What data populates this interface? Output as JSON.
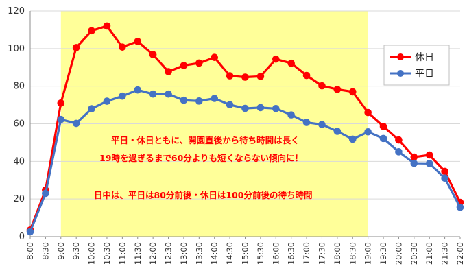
{
  "chart_data": {
    "type": "line",
    "categories": [
      "8:00",
      "8:30",
      "9:00",
      "9:30",
      "10:00",
      "10:30",
      "11:00",
      "11:30",
      "12:00",
      "12:30",
      "13:00",
      "13:30",
      "14:00",
      "14:30",
      "15:00",
      "15:30",
      "16:00",
      "16:30",
      "17:00",
      "17:30",
      "18:00",
      "18:30",
      "19:00",
      "19:30",
      "20:00",
      "20:30",
      "21:00",
      "21:30",
      "22:00"
    ],
    "series": [
      {
        "name": "休日",
        "color": "#ff0000",
        "values": [
          3.5,
          24.8,
          71,
          100.5,
          109.5,
          112,
          100.8,
          103.8,
          96.8,
          87.7,
          91,
          92.3,
          95.3,
          85.5,
          84.8,
          85.2,
          94.4,
          92.2,
          85.7,
          80.2,
          78.3,
          77,
          66,
          58.6,
          51.4,
          42.3,
          43.4,
          34.7,
          18.2
        ]
      },
      {
        "name": "平日",
        "color": "#4472c4",
        "values": [
          2.6,
          23,
          62.3,
          60.2,
          68,
          72,
          74.7,
          78,
          75.8,
          75.8,
          72.5,
          72.1,
          73.5,
          70.1,
          68.2,
          68.6,
          68.1,
          64.7,
          60.7,
          59.6,
          56,
          51.8,
          55.7,
          52.2,
          45.1,
          39,
          38.9,
          31.1,
          15.6
        ]
      }
    ],
    "ylim": [
      0,
      120
    ],
    "yticks": [
      "0",
      "20",
      "40",
      "60",
      "80",
      "100",
      "120"
    ],
    "highlight": {
      "from": "9:00",
      "to": "19:00",
      "color": "#ffff99"
    },
    "grid": "horizontal",
    "legend_position": "right",
    "annotations": [
      "平日・休日ともに、開園直後から待ち時間は長く",
      "19時を過ぎるまで60分よりも短くならない傾向に！",
      "日中は、平日は80分前後・休日は100分前後の待ち時間"
    ]
  }
}
